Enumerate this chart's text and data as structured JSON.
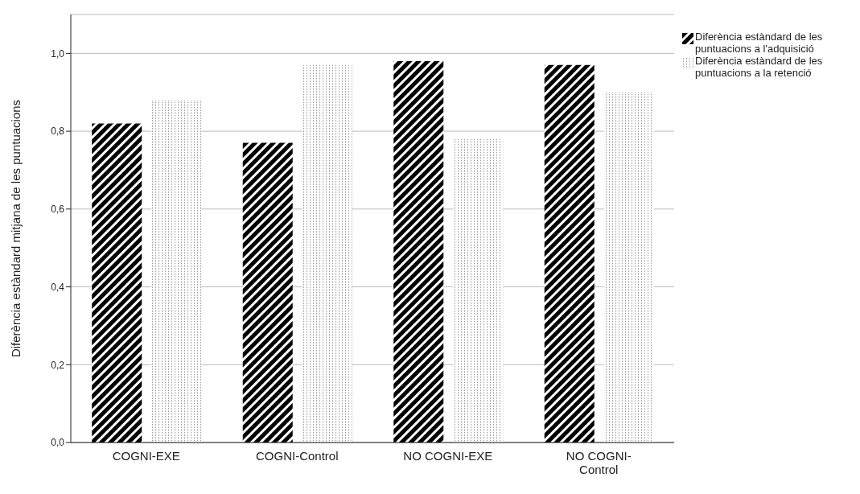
{
  "chart_data": {
    "type": "bar",
    "ylabel": "Diferència estàndard mitjana de les puntuacions",
    "categories": [
      "COGNI-EXE",
      "COGNI-Control",
      "NO COGNI-EXE",
      "NO COGNI-Control"
    ],
    "series": [
      {
        "name": "Diferència estàndard de les puntuacions a l'adquisició",
        "color": "#000000",
        "values": [
          0.82,
          0.77,
          0.98,
          0.97
        ]
      },
      {
        "name": "Diferència estàndard de les puntuacions a la retenció",
        "color": "#999999",
        "values": [
          0.88,
          0.97,
          0.78,
          0.9
        ]
      }
    ],
    "ylim": [
      0,
      1.1
    ],
    "yticks": [
      {
        "value": 0,
        "label": "0,0"
      },
      {
        "value": 0.2,
        "label": "0,2"
      },
      {
        "value": 0.4,
        "label": "0,4"
      },
      {
        "value": 0.6,
        "label": "0,6"
      },
      {
        "value": 0.8,
        "label": "0,8"
      },
      {
        "value": 1,
        "label": "1,0"
      }
    ],
    "grid": "y",
    "legend": "top right"
  }
}
